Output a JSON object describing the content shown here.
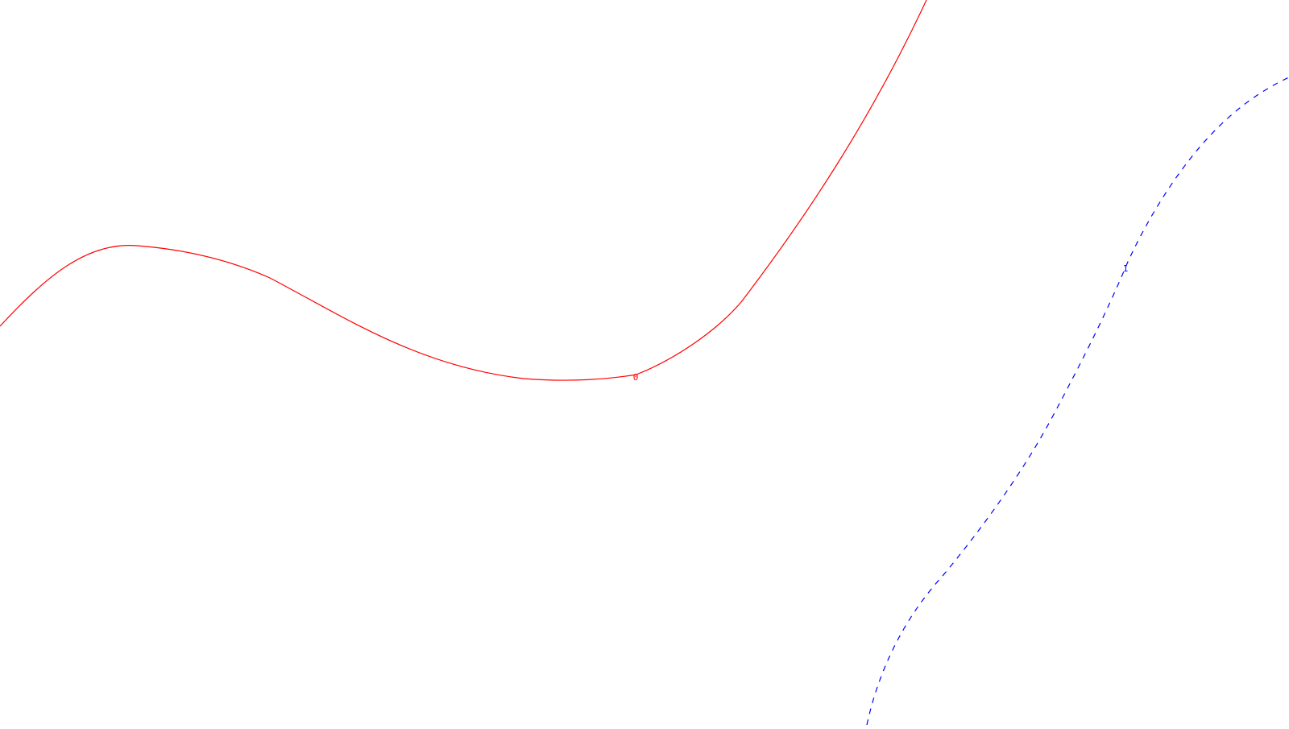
{
  "curves": [
    {
      "label": "0",
      "color": "#ff0000",
      "style": "solid"
    },
    {
      "label": "1",
      "color": "#0000ff",
      "style": "dashed"
    }
  ]
}
